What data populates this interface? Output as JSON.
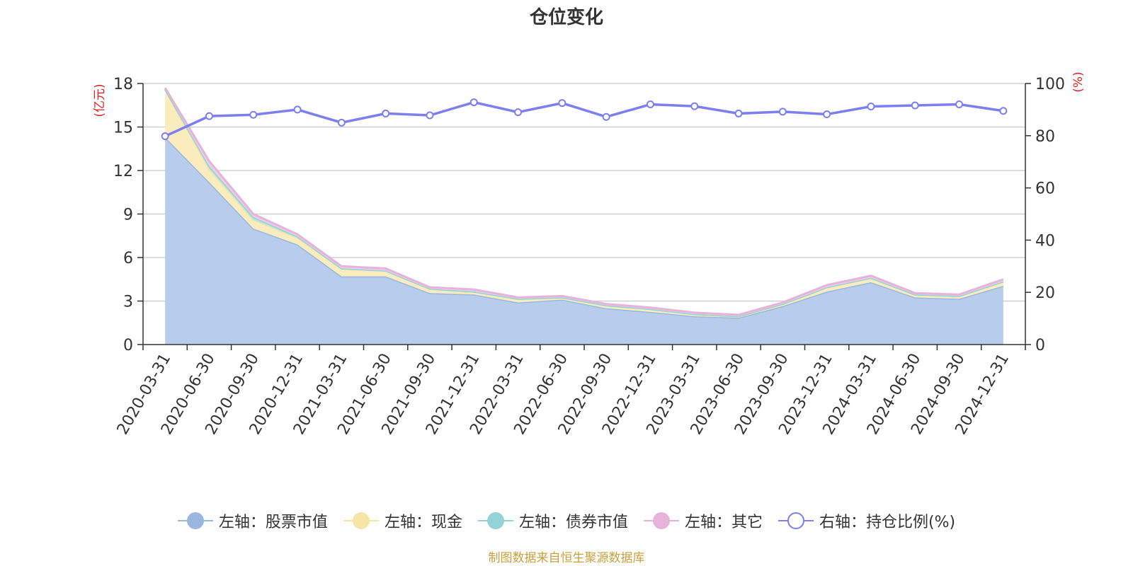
{
  "chart_data": {
    "type": "area",
    "title": "仓位变化",
    "left_axis_unit": "(亿元)",
    "right_axis_unit": "(%)",
    "left_ylim": [
      0,
      18
    ],
    "left_ticks": [
      0,
      3,
      6,
      9,
      12,
      15,
      18
    ],
    "right_ylim": [
      0,
      100
    ],
    "right_ticks": [
      0,
      20,
      40,
      60,
      80,
      100
    ],
    "categories": [
      "2020-03-31",
      "2020-06-30",
      "2020-09-30",
      "2020-12-31",
      "2021-03-31",
      "2021-06-30",
      "2021-09-30",
      "2021-12-31",
      "2022-03-31",
      "2022-06-30",
      "2022-09-30",
      "2022-12-31",
      "2023-03-31",
      "2023-06-30",
      "2023-09-30",
      "2023-12-31",
      "2024-03-31",
      "2024-06-30",
      "2024-09-30",
      "2024-12-31"
    ],
    "series": [
      {
        "name": "左轴：股票市值",
        "axis": "left",
        "kind": "stacked-area",
        "color": "#9ab7e0",
        "fill": "#b7cdeb",
        "values": [
          14.3,
          11.2,
          8.0,
          6.9,
          4.7,
          4.7,
          3.55,
          3.45,
          2.9,
          3.1,
          2.5,
          2.25,
          1.95,
          1.85,
          2.65,
          3.65,
          4.3,
          3.25,
          3.15,
          4.05
        ]
      },
      {
        "name": "左轴：现金",
        "axis": "left",
        "kind": "stacked-area",
        "color": "#f5e6a6",
        "fill": "#faecbd",
        "values": [
          3.3,
          0.9,
          0.6,
          0.45,
          0.55,
          0.4,
          0.3,
          0.2,
          0.25,
          0.15,
          0.2,
          0.2,
          0.15,
          0.1,
          0.15,
          0.3,
          0.3,
          0.2,
          0.2,
          0.3
        ]
      },
      {
        "name": "左轴：债券市值",
        "axis": "left",
        "kind": "stacked-area",
        "color": "#92d4d4",
        "fill": "#b2e3e3",
        "values": [
          0.0,
          0.2,
          0.2,
          0.1,
          0.0,
          0.0,
          0.0,
          0.0,
          0.0,
          0.0,
          0.0,
          0.0,
          0.0,
          0.0,
          0.0,
          0.0,
          0.0,
          0.0,
          0.0,
          0.0
        ]
      },
      {
        "name": "左轴：其它",
        "axis": "left",
        "kind": "stacked-area",
        "color": "#e6b3da",
        "fill": "#eecde6",
        "values": [
          0.1,
          0.35,
          0.2,
          0.15,
          0.15,
          0.15,
          0.1,
          0.15,
          0.1,
          0.1,
          0.1,
          0.1,
          0.1,
          0.1,
          0.1,
          0.15,
          0.15,
          0.1,
          0.1,
          0.15
        ]
      },
      {
        "name": "右轴：持仓比例(%)",
        "axis": "right",
        "kind": "line",
        "color": "#7b7ff0",
        "values": [
          79.8,
          87.5,
          88.0,
          90.0,
          85.0,
          88.5,
          87.8,
          92.8,
          89.0,
          92.5,
          87.2,
          92.0,
          91.3,
          88.5,
          89.2,
          88.2,
          91.2,
          91.6,
          92.0,
          89.5
        ]
      }
    ]
  },
  "legend": [
    {
      "label": "左轴：股票市值",
      "color": "#9ab7e0",
      "hollow": false
    },
    {
      "label": "左轴：现金",
      "color": "#f5e6a6",
      "hollow": false
    },
    {
      "label": "左轴：债券市值",
      "color": "#92d4d4",
      "hollow": false
    },
    {
      "label": "左轴：其它",
      "color": "#e6b3da",
      "hollow": false
    },
    {
      "label": "右轴：持仓比例(%)",
      "color": "#7b7ff0",
      "hollow": true
    }
  ],
  "footer": "制图数据来自恒生聚源数据库"
}
